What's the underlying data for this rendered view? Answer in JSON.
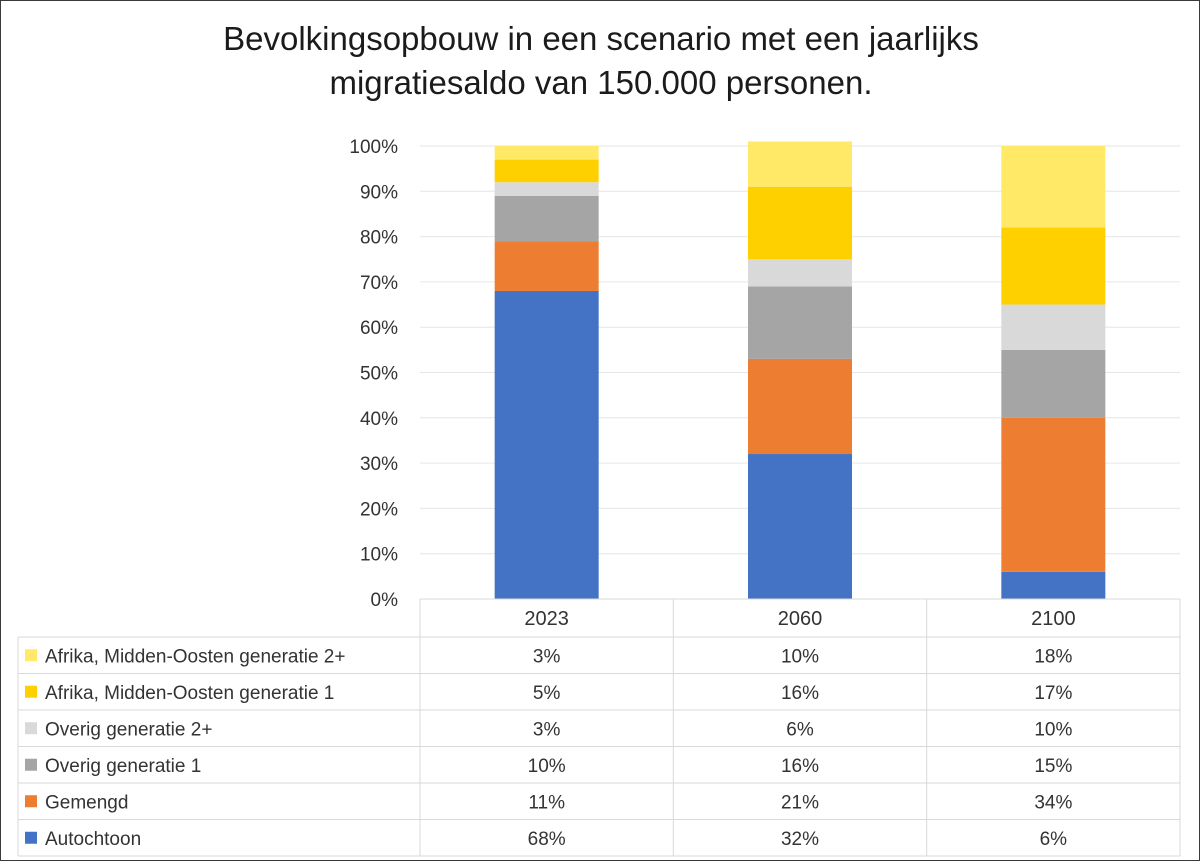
{
  "chart_data": {
    "type": "bar",
    "stacked": true,
    "title": "Bevolkingsopbouw in een scenario met een jaarlijks migratiesaldo van 150.000 personen.",
    "title_lines": [
      "Bevolkingsopbouw in een scenario met een jaarlijks",
      "migratiesaldo van 150.000 personen."
    ],
    "categories": [
      "2023",
      "2060",
      "2100"
    ],
    "y_ticks": [
      "0%",
      "10%",
      "20%",
      "30%",
      "40%",
      "50%",
      "60%",
      "70%",
      "80%",
      "90%",
      "100%"
    ],
    "ylim": [
      0,
      100
    ],
    "xlabel": "",
    "ylabel": "",
    "legend_position": "bottom data table",
    "series": [
      {
        "name": "Autochtoon",
        "color": "#4472c4",
        "values": [
          68,
          32,
          6
        ],
        "labels": [
          "68%",
          "32%",
          "6%"
        ]
      },
      {
        "name": "Gemengd",
        "color": "#ed7d31",
        "values": [
          11,
          21,
          34
        ],
        "labels": [
          "11%",
          "21%",
          "34%"
        ]
      },
      {
        "name": "Overig generatie 1",
        "color": "#a5a5a5",
        "values": [
          10,
          16,
          15
        ],
        "labels": [
          "10%",
          "16%",
          "15%"
        ]
      },
      {
        "name": "Overig generatie 2+",
        "color": "#d9d9d9",
        "values": [
          3,
          6,
          10
        ],
        "labels": [
          "3%",
          "6%",
          "10%"
        ]
      },
      {
        "name": "Afrika, Midden-Oosten generatie 1",
        "color": "#ffd000",
        "values": [
          5,
          16,
          17
        ],
        "labels": [
          "5%",
          "16%",
          "17%"
        ]
      },
      {
        "name": "Afrika, Midden-Oosten generatie 2+",
        "color": "#ffe966",
        "values": [
          3,
          10,
          18
        ],
        "labels": [
          "3%",
          "10%",
          "18%"
        ]
      }
    ]
  }
}
